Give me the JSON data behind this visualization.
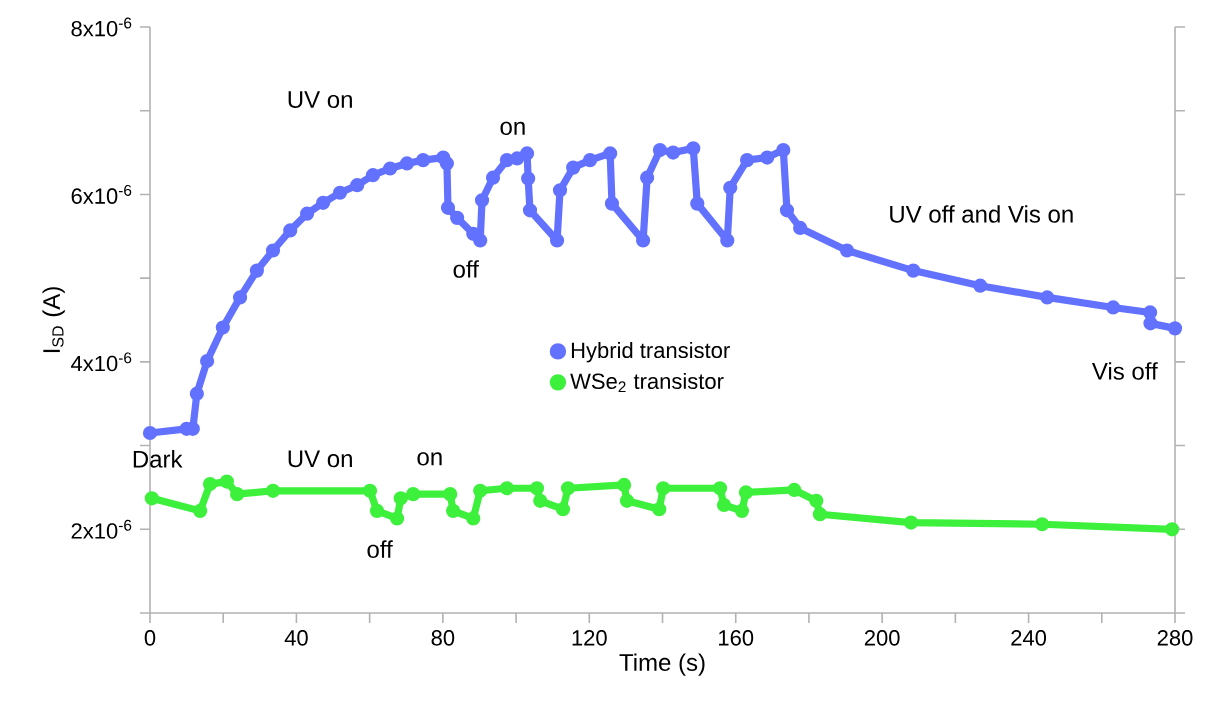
{
  "chart_data": {
    "type": "line",
    "xlabel": "Time (s)",
    "ylabel": "I$_{SD}$ (A)",
    "xlim": [
      0,
      280
    ],
    "ylim": [
      1e-06,
      8e-06
    ],
    "xticks": [
      0,
      {
        "value": 20,
        "label": null
      },
      40,
      {
        "value": 60,
        "label": null
      },
      80,
      {
        "value": 100,
        "label": null
      },
      120,
      {
        "value": 140,
        "label": null
      },
      160,
      {
        "value": 180,
        "label": null
      },
      200,
      {
        "value": 220,
        "label": null
      },
      240,
      {
        "value": 260,
        "label": null
      },
      280
    ],
    "yticks": [
      {
        "value": 1e-06,
        "label": null
      },
      {
        "value": 2e-06,
        "label": "2x10$^{-6}$"
      },
      {
        "value": 3e-06,
        "label": null
      },
      {
        "value": 4e-06,
        "label": "4x10$^{-6}$"
      },
      {
        "value": 5e-06,
        "label": null
      },
      {
        "value": 6e-06,
        "label": "6x10$^{-6}$"
      },
      {
        "value": 7e-06,
        "label": null
      },
      {
        "value": 8e-06,
        "label": "8x10$^{-6}$"
      }
    ],
    "legend": "center",
    "marker": "circle",
    "line_style": "solid",
    "series": [
      {
        "name": "Hybrid transistor",
        "color": "#6272ff",
        "x": [
          0,
          10,
          11.7,
          12.8,
          15.6,
          19.9,
          24.6,
          29.2,
          33.6,
          38.3,
          42.9,
          47.3,
          51.9,
          56.6,
          60.9,
          65.6,
          70.2,
          74.6,
          80.1,
          81.1,
          81.4,
          83.9,
          88.3,
          90.2,
          90.7,
          93.7,
          97.5,
          100.3,
          103,
          103.3,
          103.8,
          111.2,
          112,
          115.6,
          120.2,
          125.7,
          126.2,
          134.7,
          135.8,
          139.3,
          142.9,
          148.4,
          149.5,
          157.7,
          158.5,
          163.1,
          168.6,
          173,
          174,
          177.6,
          190.4,
          208.5,
          226.8,
          245.1,
          263.1,
          273.2,
          273.3,
          280
        ],
        "values": [
          3.15e-06,
          3.2e-06,
          3.2e-06,
          3.62e-06,
          4.01e-06,
          4.41e-06,
          4.77e-06,
          5.09e-06,
          5.33e-06,
          5.57e-06,
          5.77e-06,
          5.9e-06,
          6.02e-06,
          6.11e-06,
          6.23e-06,
          6.31e-06,
          6.37e-06,
          6.41e-06,
          6.44e-06,
          6.37e-06,
          5.84e-06,
          5.72e-06,
          5.53e-06,
          5.45e-06,
          5.93e-06,
          6.2e-06,
          6.41e-06,
          6.43e-06,
          6.49e-06,
          6.19e-06,
          5.81e-06,
          5.45e-06,
          6.05e-06,
          6.32e-06,
          6.41e-06,
          6.49e-06,
          5.89e-06,
          5.45e-06,
          6.2e-06,
          6.53e-06,
          6.5e-06,
          6.55e-06,
          5.89e-06,
          5.45e-06,
          6.08e-06,
          6.41e-06,
          6.44e-06,
          6.53e-06,
          5.81e-06,
          5.6e-06,
          5.33e-06,
          5.09e-06,
          4.91e-06,
          4.77e-06,
          4.65e-06,
          4.59e-06,
          4.46e-06,
          4.4e-06
        ]
      },
      {
        "name": "WSe$_{2}$ transistor",
        "color": "#3cf03c",
        "x": [
          0.5,
          13.7,
          16.4,
          21,
          23.8,
          33.6,
          60.1,
          62,
          67.5,
          68.5,
          71.9,
          82,
          82.8,
          88.3,
          90.2,
          97.5,
          105.7,
          106.6,
          112.8,
          114.2,
          129.5,
          130.3,
          139.1,
          140.2,
          155.7,
          156.8,
          161.7,
          162.8,
          176,
          182,
          183,
          207.9,
          243.7,
          279.2
        ],
        "values": [
          2.37e-06,
          2.22e-06,
          2.54e-06,
          2.57e-06,
          2.42e-06,
          2.46e-06,
          2.46e-06,
          2.22e-06,
          2.13e-06,
          2.37e-06,
          2.42e-06,
          2.42e-06,
          2.22e-06,
          2.13e-06,
          2.46e-06,
          2.49e-06,
          2.49e-06,
          2.34e-06,
          2.24e-06,
          2.49e-06,
          2.53e-06,
          2.34e-06,
          2.24e-06,
          2.49e-06,
          2.49e-06,
          2.29e-06,
          2.22e-06,
          2.44e-06,
          2.47e-06,
          2.34e-06,
          2.18e-06,
          2.08e-06,
          2.06e-06,
          2e-06
        ]
      }
    ],
    "annotations": [
      "UV on",
      "on",
      "off",
      "UV off and Vis on",
      "Vis off",
      "Dark",
      "UV on",
      "on",
      "off"
    ]
  }
}
